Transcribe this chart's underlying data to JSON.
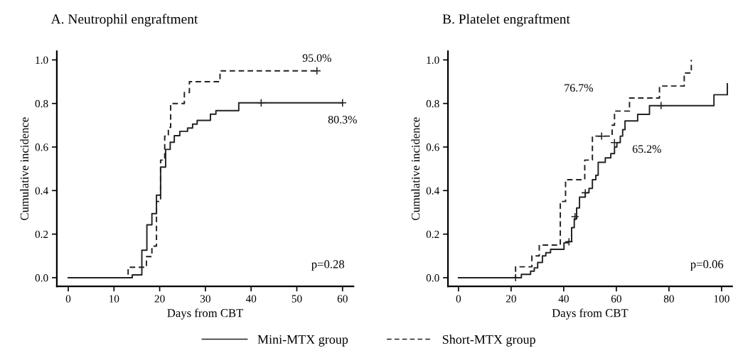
{
  "chart_data": [
    {
      "type": "step",
      "title": "A. Neutrophil engraftment",
      "xlabel": "Days from CBT",
      "ylabel": "Cumulative incidence",
      "xlim": [
        -2.5,
        62.4
      ],
      "ylim": [
        -0.04,
        1.04
      ],
      "xticks": [
        0,
        10,
        20,
        30,
        40,
        50,
        60
      ],
      "yticks": [
        {
          "value": 0,
          "label": "0.0"
        },
        {
          "value": 0.2,
          "label": "0.2"
        },
        {
          "value": 0.4,
          "label": "0.4"
        },
        {
          "value": 0.6,
          "label": "0.6"
        },
        {
          "value": 0.8,
          "label": "0.8"
        },
        {
          "value": 1.0,
          "label": "1.0"
        }
      ],
      "grid": false,
      "legend": "bottom",
      "series": [
        {
          "name": "Mini-MTX group",
          "color": "#222222",
          "line_style": "solid",
          "x": [
            0,
            14.0,
            16.1,
            17.2,
            18.3,
            19.3,
            20.2,
            21.3,
            22.3,
            23.2,
            24.4,
            26.1,
            27.2,
            28.2,
            31.1,
            32.3,
            37.3,
            60
          ],
          "values": [
            0,
            0.013,
            0.126,
            0.243,
            0.294,
            0.379,
            0.508,
            0.589,
            0.622,
            0.652,
            0.672,
            0.687,
            0.705,
            0.722,
            0.751,
            0.767,
            0.803,
            0.803
          ]
        },
        {
          "name": "Short-MTX group",
          "color": "#222222",
          "line_style": "dashed",
          "x": [
            0,
            13.1,
            17.1,
            18.3,
            19.3,
            20.2,
            21.1,
            21.9,
            22.4,
            25.4,
            26.5,
            33.2,
            54.4
          ],
          "values": [
            0,
            0.048,
            0.097,
            0.145,
            0.35,
            0.54,
            0.65,
            0.69,
            0.8,
            0.85,
            0.9,
            0.95,
            0.95
          ]
        },
        {
          "type": "scatter",
          "marker": "cross",
          "color": "#222222",
          "x": [
            42.2,
            60,
            54.4
          ],
          "values": [
            0.803,
            0.803,
            0.95
          ]
        }
      ],
      "annotations": [
        {
          "text": "95.0%",
          "x": 54.4,
          "y": 0.95
        },
        {
          "text": "80.3%",
          "x": 60,
          "y": 0.803
        },
        "p=0.28"
      ]
    },
    {
      "type": "step",
      "title": "B. Platelet engraftment",
      "xlabel": "Days from CBT",
      "ylabel": "Cumulative incidence",
      "xlim": [
        -4,
        104
      ],
      "ylim": [
        -0.04,
        1.04
      ],
      "xticks": [
        0,
        20,
        40,
        60,
        80,
        100
      ],
      "yticks": [
        {
          "value": 0,
          "label": "0.0"
        },
        {
          "value": 0.2,
          "label": "0.2"
        },
        {
          "value": 0.4,
          "label": "0.4"
        },
        {
          "value": 0.6,
          "label": "0.6"
        },
        {
          "value": 0.8,
          "label": "0.8"
        },
        {
          "value": 1.0,
          "label": "1.0"
        }
      ],
      "grid": false,
      "legend": "bottom",
      "series": [
        {
          "name": "Mini-MTX group",
          "color": "#222222",
          "line_style": "solid",
          "x": [
            0,
            23.9,
            27.4,
            28.8,
            30.1,
            31.9,
            33.2,
            35.0,
            40.1,
            41.6,
            43.0,
            44.0,
            44.9,
            46.0,
            48.2,
            49.6,
            50.9,
            52.2,
            53.1,
            55.8,
            57.9,
            59.3,
            60.2,
            61.5,
            62.4,
            63.3,
            68.1,
            72.6,
            97.1,
            102.2
          ],
          "values": [
            0,
            0.015,
            0.03,
            0.045,
            0.07,
            0.1,
            0.115,
            0.13,
            0.16,
            0.165,
            0.23,
            0.27,
            0.32,
            0.37,
            0.39,
            0.41,
            0.45,
            0.47,
            0.53,
            0.55,
            0.57,
            0.6,
            0.62,
            0.65,
            0.68,
            0.72,
            0.75,
            0.79,
            0.84,
            0.89
          ]
        },
        {
          "name": "Short-MTX group",
          "color": "#222222",
          "line_style": "dashed",
          "x": [
            0,
            21.7,
            27.9,
            30.7,
            38.7,
            40.7,
            48.0,
            50.9,
            58.4,
            59.3,
            65.0,
            76.4,
            85.8,
            88.5
          ],
          "values": [
            0,
            0.05,
            0.1,
            0.15,
            0.35,
            0.45,
            0.54,
            0.65,
            0.7,
            0.765,
            0.825,
            0.88,
            0.94,
            1.0
          ]
        },
        {
          "type": "scatter",
          "marker": "cross",
          "color": "#222222",
          "x": [
            21.7,
            42.0,
            44.3,
            48.2,
            59.3,
            77.0,
            54.4
          ],
          "values": [
            0,
            0.165,
            0.28,
            0.39,
            0.62,
            0.79,
            0.65
          ]
        }
      ],
      "annotations": [
        "76.7%",
        "65.2%",
        "p=0.06"
      ]
    }
  ]
}
